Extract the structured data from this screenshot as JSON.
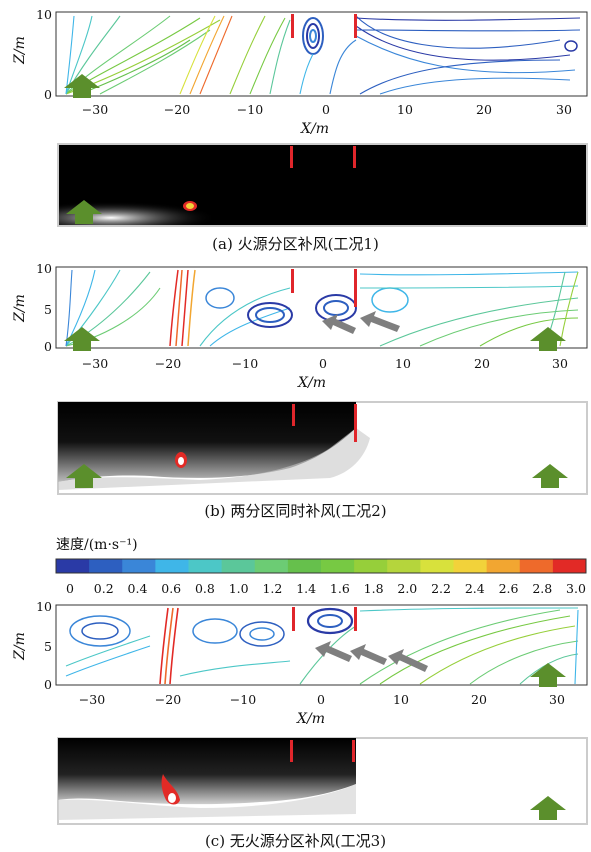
{
  "axes": {
    "ylabel": "Z/m",
    "xlabel": "X/m",
    "xticks": [
      "−30",
      "−20",
      "−10",
      "0",
      "10",
      "20",
      "30"
    ],
    "yticks": [
      "0",
      "5",
      "10"
    ]
  },
  "panels": [
    {
      "caption": "(a) 火源分区补风(工况1)",
      "yticks_shown": [
        "0",
        "10"
      ]
    },
    {
      "caption": "(b) 两分区同时补风(工况2)",
      "yticks_shown": [
        "0",
        "5",
        "10"
      ]
    },
    {
      "caption": "(c) 无火源分区补风(工况3)",
      "yticks_shown": [
        "0",
        "5",
        "10"
      ]
    }
  ],
  "legend": {
    "title": "速度/(m·s⁻¹)",
    "ticks": [
      "0",
      "0.2",
      "0.4",
      "0.6",
      "0.8",
      "1.0",
      "1.2",
      "1.4",
      "1.6",
      "1.8",
      "2.0",
      "2.2",
      "2.4",
      "2.6",
      "2.8",
      "3.0"
    ],
    "colors": [
      "#2a3aa6",
      "#2d5fc0",
      "#3a86d8",
      "#3fb6e8",
      "#4cc7c7",
      "#5bc79a",
      "#6ccc74",
      "#66c04c",
      "#77c943",
      "#96cf3a",
      "#b5d53c",
      "#d8e13c",
      "#f2d23a",
      "#f2a631",
      "#ee6a2b",
      "#e22a26"
    ]
  },
  "colors": {
    "partition_wall": "#e0262b",
    "arrow_green": "#5b8f2c",
    "arrow_gray": "#7f7f7f"
  },
  "icons": {
    "inflow_arrow": "up-arrow-icon",
    "flow_arrow": "diagonal-arrow-icon"
  }
}
